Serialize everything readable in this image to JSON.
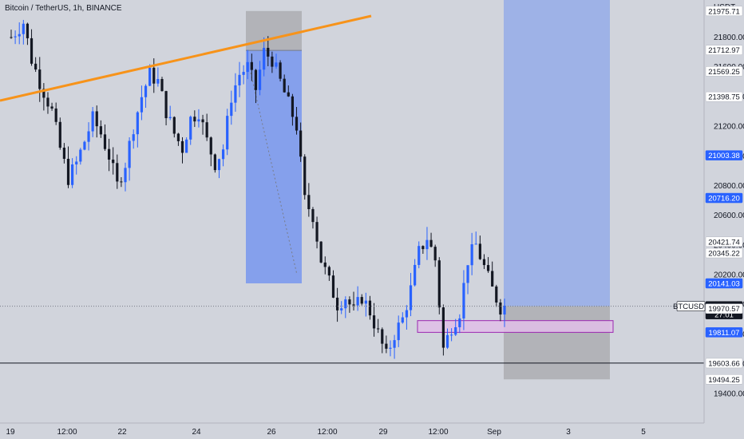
{
  "chart_data": {
    "type": "candlestick",
    "title": "Bitcoin / TetherUS, 1h, BINANCE",
    "currency": "USDT",
    "symbol": "BTCUSDT",
    "countdown": "27:01",
    "ylim": [
      19200,
      22050
    ],
    "y_ticks": [
      19400,
      19600,
      19800,
      20000,
      20200,
      20400,
      20600,
      20800,
      21000,
      21200,
      21400,
      21600,
      21800
    ],
    "x_labels": [
      "19",
      "12:00",
      "22",
      "24",
      "26",
      "12:00",
      "29",
      "12:00",
      "Sep",
      "3",
      "5"
    ],
    "price_tags": [
      {
        "value": "21975.71",
        "style": "white"
      },
      {
        "value": "21712.97",
        "style": "white"
      },
      {
        "value": "21569.25",
        "style": "white"
      },
      {
        "value": "21398.75",
        "style": "white"
      },
      {
        "value": "21003.38",
        "style": "blue"
      },
      {
        "value": "20716.20",
        "style": "blue"
      },
      {
        "value": "20421.74",
        "style": "white"
      },
      {
        "value": "20345.22",
        "style": "white"
      },
      {
        "value": "20141.03",
        "style": "blue"
      },
      {
        "value": "19986.81",
        "style": "black"
      },
      {
        "value": "19970.57",
        "style": "white"
      },
      {
        "value": "19811.07",
        "style": "blue"
      },
      {
        "value": "19603.66",
        "style": "white"
      },
      {
        "value": "19494.25",
        "style": "white"
      }
    ],
    "current_price": 19986.81,
    "horizontal_line": 19603.66,
    "trendline": {
      "color": "#f7931a"
    },
    "zone": {
      "color": "#e1bee7",
      "border": "#9c27b0"
    },
    "short_position": {
      "entry": 21712.97,
      "stop": 21975.71,
      "target": 20141.03
    },
    "long_position": {
      "entry": 19986.81,
      "stop": 19494.25,
      "target": 22050
    },
    "colors": {
      "bg": "#d1d4dc",
      "up": "#2962ff",
      "down": "#131722",
      "blue_zone": "rgba(41,98,255,0.45)",
      "blue_zone_light": "rgba(41,98,255,0.30)",
      "grey_zone": "rgba(140,140,140,0.45)"
    },
    "series": {
      "close_path": [
        [
          0,
          21800
        ],
        [
          3,
          21900
        ],
        [
          5,
          21650
        ],
        [
          7,
          21500
        ],
        [
          10,
          21300
        ],
        [
          12,
          21050
        ],
        [
          14,
          20850
        ],
        [
          16,
          20950
        ],
        [
          18,
          21100
        ],
        [
          20,
          21250
        ],
        [
          22,
          21150
        ],
        [
          24,
          21000
        ],
        [
          26,
          20800
        ],
        [
          28,
          20950
        ],
        [
          30,
          21200
        ],
        [
          32,
          21400
        ],
        [
          34,
          21550
        ],
        [
          36,
          21500
        ],
        [
          38,
          21300
        ],
        [
          40,
          21150
        ],
        [
          42,
          21050
        ],
        [
          44,
          21250
        ],
        [
          46,
          21300
        ],
        [
          48,
          21100
        ],
        [
          50,
          20950
        ],
        [
          52,
          21050
        ],
        [
          54,
          21400
        ],
        [
          56,
          21550
        ],
        [
          58,
          21600
        ],
        [
          60,
          21450
        ],
        [
          62,
          21700
        ],
        [
          64,
          21650
        ],
        [
          66,
          21500
        ],
        [
          68,
          21350
        ],
        [
          70,
          21200
        ],
        [
          72,
          20700
        ],
        [
          74,
          20600
        ],
        [
          76,
          20300
        ],
        [
          78,
          20150
        ],
        [
          80,
          20000
        ],
        [
          82,
          20050
        ],
        [
          84,
          19950
        ],
        [
          86,
          20050
        ],
        [
          88,
          19950
        ],
        [
          90,
          19800
        ],
        [
          92,
          19650
        ],
        [
          94,
          19800
        ],
        [
          96,
          19900
        ],
        [
          98,
          20100
        ],
        [
          100,
          20350
        ],
        [
          102,
          20450
        ],
        [
          104,
          20300
        ],
        [
          106,
          19700
        ],
        [
          108,
          19850
        ],
        [
          110,
          19950
        ],
        [
          112,
          20300
        ],
        [
          114,
          20400
        ],
        [
          116,
          20250
        ],
        [
          118,
          20100
        ],
        [
          120,
          19980
        ],
        [
          121,
          19987
        ]
      ]
    }
  }
}
